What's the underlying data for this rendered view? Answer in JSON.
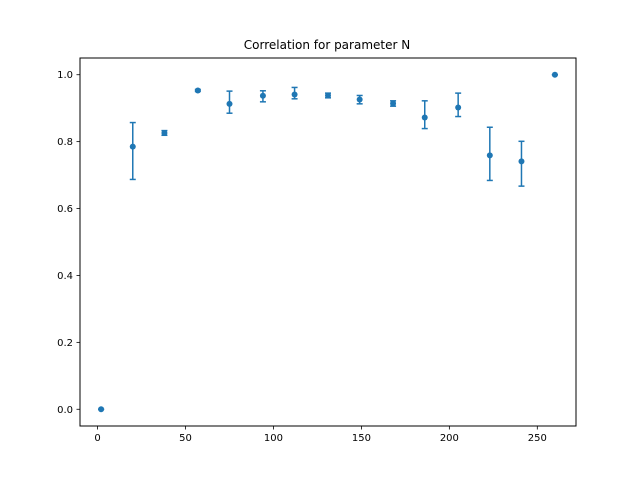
{
  "chart_data": {
    "type": "scatter",
    "title": "Correlation for parameter N",
    "xlabel": "",
    "ylabel": "",
    "xlim": [
      -10,
      272
    ],
    "ylim": [
      -0.05,
      1.05
    ],
    "xticks": [
      0,
      50,
      100,
      150,
      200,
      250
    ],
    "yticks": [
      0.0,
      0.2,
      0.4,
      0.6,
      0.8,
      1.0
    ],
    "grid": false,
    "color": "#1f77b4",
    "series": [
      {
        "points": [
          {
            "x": 2,
            "y": 0.0,
            "err_low": 0.0,
            "err_high": 0.0
          },
          {
            "x": 20,
            "y": 0.785,
            "err_low": 0.098,
            "err_high": 0.072
          },
          {
            "x": 38,
            "y": 0.826,
            "err_low": 0.007,
            "err_high": 0.007
          },
          {
            "x": 57,
            "y": 0.953,
            "err_low": 0.003,
            "err_high": 0.003
          },
          {
            "x": 75,
            "y": 0.913,
            "err_low": 0.028,
            "err_high": 0.038
          },
          {
            "x": 94,
            "y": 0.937,
            "err_low": 0.018,
            "err_high": 0.015
          },
          {
            "x": 112,
            "y": 0.941,
            "err_low": 0.013,
            "err_high": 0.021
          },
          {
            "x": 131,
            "y": 0.938,
            "err_low": 0.007,
            "err_high": 0.007
          },
          {
            "x": 149,
            "y": 0.926,
            "err_low": 0.013,
            "err_high": 0.012
          },
          {
            "x": 168,
            "y": 0.914,
            "err_low": 0.008,
            "err_high": 0.008
          },
          {
            "x": 186,
            "y": 0.872,
            "err_low": 0.033,
            "err_high": 0.05
          },
          {
            "x": 205,
            "y": 0.902,
            "err_low": 0.027,
            "err_high": 0.043
          },
          {
            "x": 223,
            "y": 0.759,
            "err_low": 0.075,
            "err_high": 0.084
          },
          {
            "x": 241,
            "y": 0.741,
            "err_low": 0.074,
            "err_high": 0.06
          },
          {
            "x": 260,
            "y": 1.0,
            "err_low": 0.0,
            "err_high": 0.0
          }
        ]
      }
    ]
  }
}
